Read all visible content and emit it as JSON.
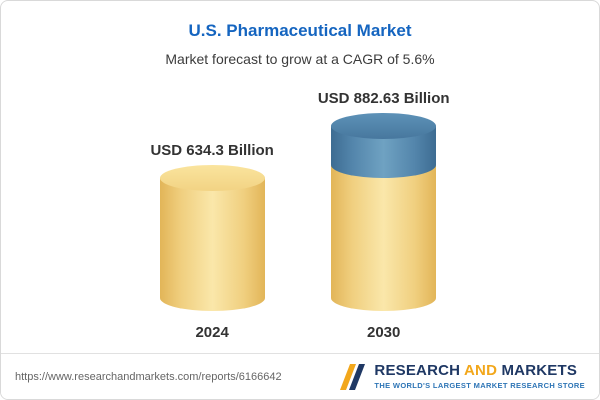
{
  "header": {
    "title": "U.S. Pharmaceutical Market",
    "subtitle": "Market forecast to grow at a CAGR of 5.6%"
  },
  "chart_data": {
    "type": "bar",
    "title": "U.S. Pharmaceutical Market",
    "subtitle": "Market forecast to grow at a CAGR of 5.6%",
    "categories": [
      "2024",
      "2030"
    ],
    "values": [
      634.3,
      882.63
    ],
    "value_labels": [
      "USD 634.3 Billion",
      "USD 882.63 Billion"
    ],
    "unit": "USD Billion",
    "cagr_pct": 5.6,
    "bar_style": "cylinder-3d",
    "colors": {
      "base_segment": "#F0CF7F",
      "growth_segment": "#5385AB"
    },
    "ylim": [
      0,
      900
    ],
    "legend": "none",
    "grid": false
  },
  "footer": {
    "url": "https://www.researchandmarkets.com/reports/6166642",
    "logo": {
      "research": "RESEARCH",
      "and": "AND",
      "markets": "MARKETS",
      "tagline": "THE WORLD'S LARGEST MARKET RESEARCH STORE"
    }
  }
}
